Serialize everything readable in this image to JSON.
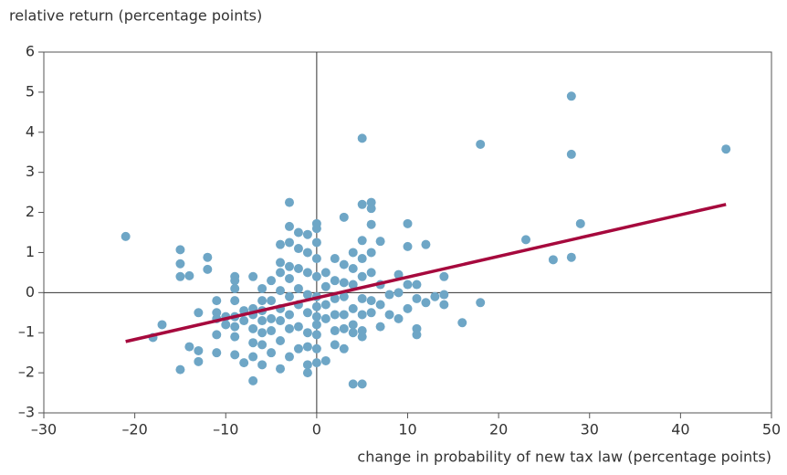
{
  "chart_data": {
    "type": "scatter",
    "ylabel": "relative return (percentage points)",
    "xlabel": "change in probability of new tax law (percentage points)",
    "xlim": [
      -30,
      50
    ],
    "xticks": [
      {
        "value": -30,
        "label": "–30"
      },
      {
        "value": -20,
        "label": "–20"
      },
      {
        "value": -10,
        "label": "–10"
      },
      0,
      10,
      20,
      30,
      40,
      50
    ],
    "ylim": [
      -3,
      6
    ],
    "yticks": [
      {
        "value": -3,
        "label": "–3"
      },
      {
        "value": -2,
        "label": "–2"
      },
      {
        "value": -1,
        "label": "–1"
      },
      0,
      1,
      2,
      3,
      4,
      5,
      6
    ],
    "color": "#6ea6c6",
    "x": [
      -21,
      -18,
      -17,
      -15,
      -15,
      -15,
      -15,
      -14,
      -14,
      -13,
      -13,
      -13,
      -12,
      -12,
      -11,
      -11,
      -11,
      -11,
      -11,
      -10,
      -10,
      -9,
      -9,
      -9,
      -9,
      -9,
      -9,
      -9,
      -9,
      -8,
      -8,
      -8,
      -7,
      -7,
      -7,
      -7,
      -7,
      -7,
      -7,
      -6,
      -6,
      -6,
      -6,
      -6,
      -6,
      -6,
      -5,
      -5,
      -5,
      -5,
      -5,
      -4,
      -4,
      -4,
      -4,
      -4,
      -4,
      -4,
      -4,
      -3,
      -3,
      -3,
      -3,
      -3,
      -3,
      -3,
      -3,
      -3,
      -2,
      -2,
      -2,
      -2,
      -2,
      -2,
      -2,
      -1,
      -1,
      -1,
      -1,
      -1,
      -1,
      -1,
      -1,
      0,
      0,
      0,
      0,
      0,
      0,
      0,
      0,
      0,
      0,
      0,
      0,
      -1,
      1,
      1,
      1,
      1,
      1,
      2,
      2,
      2,
      2,
      2,
      2,
      3,
      3,
      3,
      3,
      3,
      3,
      3,
      4,
      4,
      4,
      4,
      4,
      4,
      4,
      5,
      5,
      5,
      5,
      5,
      5,
      5,
      5,
      5,
      5,
      6,
      6,
      6,
      6,
      6,
      6,
      6,
      7,
      7,
      7,
      7,
      8,
      8,
      9,
      9,
      9,
      10,
      10,
      10,
      10,
      11,
      11,
      11,
      11,
      12,
      12,
      13,
      14,
      14,
      14,
      16,
      18,
      18,
      23,
      26,
      28,
      28,
      28,
      29,
      45
    ],
    "values": [
      1.4,
      -1.12,
      -0.8,
      1.07,
      0.72,
      0.4,
      -1.92,
      0.42,
      -1.35,
      -0.5,
      -1.45,
      -1.72,
      0.88,
      0.58,
      -0.2,
      -0.5,
      -0.65,
      -1.05,
      -1.5,
      -0.6,
      -0.8,
      0.4,
      0.3,
      0.1,
      -0.2,
      -0.6,
      -0.85,
      -1.1,
      -1.55,
      -0.45,
      -0.7,
      -1.75,
      0.4,
      -0.4,
      -0.55,
      -0.9,
      -1.25,
      -1.6,
      -2.2,
      0.1,
      -0.2,
      -0.45,
      -0.7,
      -1,
      -1.3,
      -1.8,
      0.3,
      -0.2,
      -0.65,
      -0.95,
      -1.5,
      1.2,
      0.75,
      0.5,
      0.05,
      -0.4,
      -0.7,
      -1.2,
      -1.9,
      2.25,
      1.65,
      1.25,
      0.65,
      0.35,
      -0.1,
      -0.55,
      -0.9,
      -1.6,
      1.5,
      1.1,
      0.6,
      0.1,
      -0.3,
      -0.85,
      -1.4,
      1.45,
      1.0,
      0.5,
      -0.05,
      -0.5,
      -1.0,
      -1.35,
      -1.8,
      1.72,
      1.6,
      1.25,
      0.85,
      0.4,
      -0.1,
      -0.35,
      -0.6,
      -0.8,
      -1.05,
      -1.4,
      -1.75,
      -2.0,
      0.5,
      0.15,
      -0.3,
      -0.65,
      -1.7,
      0.85,
      0.3,
      -0.15,
      -0.55,
      -0.95,
      -1.3,
      1.88,
      0.7,
      0.25,
      -0.1,
      -0.55,
      -0.9,
      -1.4,
      1.0,
      0.6,
      0.2,
      -0.4,
      -0.8,
      -1.0,
      -2.28,
      3.85,
      2.2,
      1.3,
      0.85,
      0.4,
      -0.15,
      -0.55,
      -0.95,
      -1.1,
      -2.28,
      2.25,
      2.1,
      1.7,
      1.0,
      0.5,
      -0.2,
      -0.5,
      1.28,
      0.2,
      -0.3,
      -0.85,
      -0.05,
      -0.55,
      0.45,
      0.0,
      -0.65,
      1.72,
      1.15,
      0.2,
      -0.4,
      0.2,
      -0.15,
      -0.9,
      -1.05,
      1.2,
      -0.25,
      -0.1,
      0.4,
      -0.05,
      -0.3,
      -0.75,
      3.7,
      -0.25,
      1.32,
      0.82,
      4.9,
      3.45,
      0.88,
      1.72,
      3.58
    ],
    "fit": {
      "x": [
        -21,
        45
      ],
      "values": [
        -1.22,
        2.2
      ],
      "color": "#a6093d"
    }
  }
}
